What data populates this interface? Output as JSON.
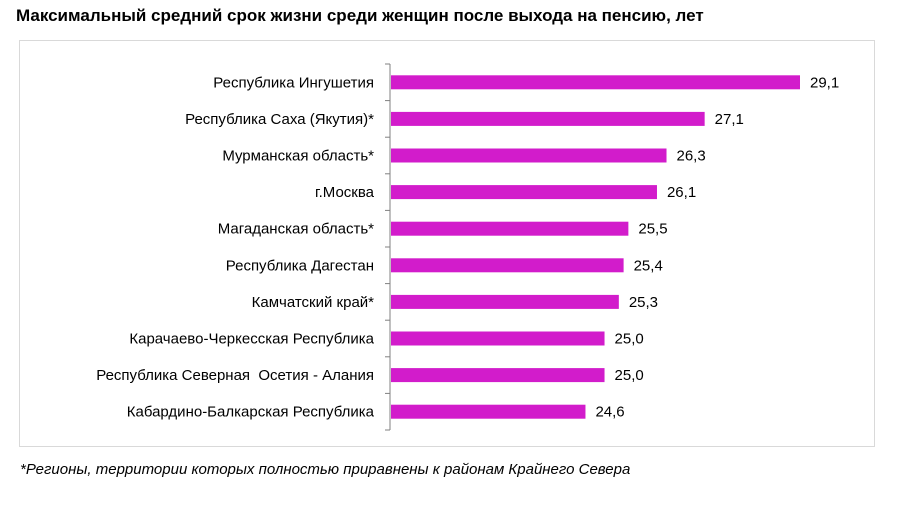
{
  "chart_data": {
    "type": "bar",
    "orientation": "horizontal",
    "title": "Максимальный средний срок жизни среди женщин после выхода на пенсию, лет",
    "categories": [
      "Республика Ингушетия",
      "Республика Саха (Якутия)*",
      "Мурманская область*",
      "г.Москва",
      "Магаданская область*",
      "Республика Дагестан",
      "Камчатский край*",
      "Карачаево-Черкесская Республика",
      "Республика Северная  Осетия - Алания",
      "Кабардино-Балкарская Республика"
    ],
    "values": [
      29.1,
      27.1,
      26.3,
      26.1,
      25.5,
      25.4,
      25.3,
      25.0,
      25.0,
      24.6
    ],
    "value_labels": [
      "29,1",
      "27,1",
      "26,3",
      "26,1",
      "25,5",
      "25,4",
      "25,3",
      "25,0",
      "25,0",
      "24,6"
    ],
    "xlim": [
      20.5,
      29.1
    ],
    "grid": false,
    "bar_color": "#d21ccb",
    "axis_color": "#808080"
  },
  "footnote": "*Регионы, территории которых полностью приравнены к районам Крайнего Севера"
}
